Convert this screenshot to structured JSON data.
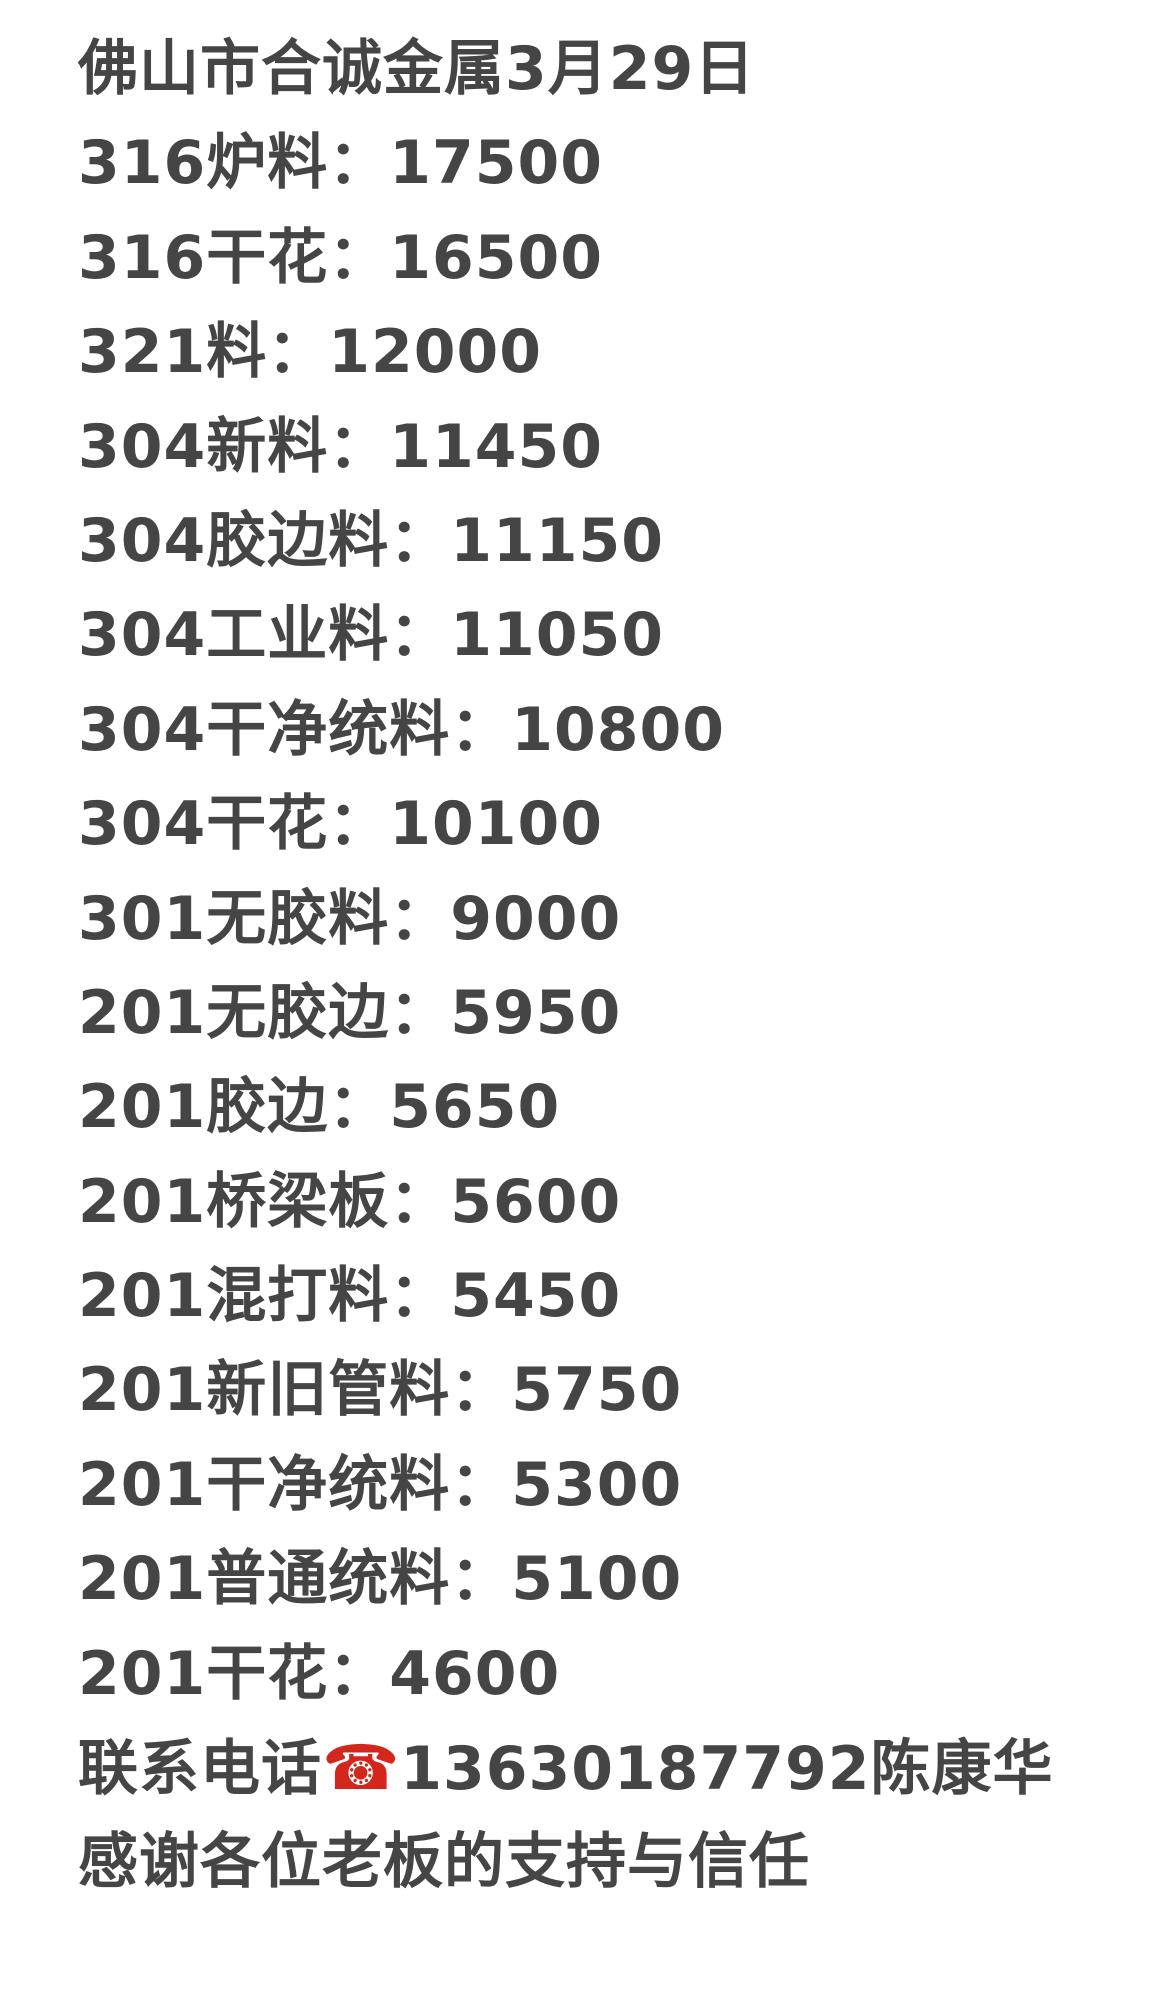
{
  "title": "佛山市合诚金属3月29日",
  "prices": [
    {
      "item": "316炉料",
      "price": "17500"
    },
    {
      "item": "316干花",
      "price": "16500"
    },
    {
      "item": "321料",
      "price": "12000"
    },
    {
      "item": "304新料",
      "price": "11450"
    },
    {
      "item": "304胶边料",
      "price": "11150"
    },
    {
      "item": "304工业料",
      "price": "11050"
    },
    {
      "item": "304干净统料",
      "price": "10800"
    },
    {
      "item": "304干花",
      "price": "10100"
    },
    {
      "item": "301无胶料",
      "price": "9000"
    },
    {
      "item": "201无胶边",
      "price": "5950"
    },
    {
      "item": "201胶边",
      "price": "5650"
    },
    {
      "item": "201桥梁板",
      "price": "5600"
    },
    {
      "item": "201混打料",
      "price": "5450"
    },
    {
      "item": "201新旧管料",
      "price": "5750"
    },
    {
      "item": "201干净统料",
      "price": "5300"
    },
    {
      "item": "201普通统料",
      "price": "5100"
    },
    {
      "item": "201干花",
      "price": "4600"
    }
  ],
  "separator": "：",
  "contact": {
    "label": "联系电话",
    "icon": "telephone-icon",
    "icon_glyph": "☎",
    "phone": "13630187792",
    "name": "陈康华"
  },
  "thanks": "感谢各位老板的支持与信任"
}
